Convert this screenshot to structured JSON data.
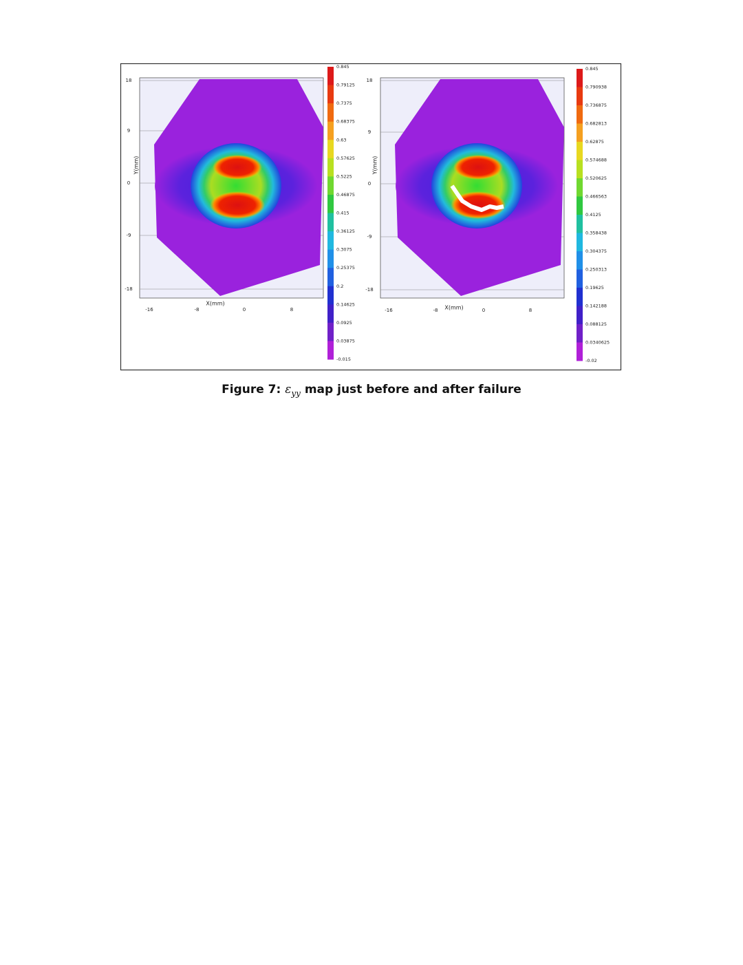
{
  "figure": {
    "panels": [
      {
        "y_axis_label": "Y(mm)",
        "x_axis_label": "X(mm)",
        "yticks": [
          "18",
          "9",
          "0",
          "-9",
          "-18"
        ],
        "xticks": [
          "-16",
          "-8",
          "0",
          "8"
        ],
        "colorbar": [
          "0.845",
          "0.79125",
          "0.7375",
          "0.68375",
          "0.63",
          "0.57625",
          "0.5225",
          "0.46875",
          "0.415",
          "0.36125",
          "0.3075",
          "0.25375",
          "0.2",
          "0.14625",
          "0.0925",
          "0.03875",
          "-0.015"
        ]
      },
      {
        "y_axis_label": "Y(mm)",
        "x_axis_label": "X(mm)",
        "yticks": [
          "18",
          "9",
          "0",
          "-9",
          "-18"
        ],
        "xticks": [
          "-16",
          "-8",
          "0",
          "8"
        ],
        "colorbar": [
          "0.845",
          "0.790938",
          "0.736875",
          "0.682813",
          "0.62875",
          "0.574688",
          "0.520625",
          "0.466563",
          "0.4125",
          "0.358438",
          "0.304375",
          "0.250313",
          "0.19625",
          "0.142188",
          "0.088125",
          "0.0340625",
          "-0.02"
        ]
      }
    ],
    "caption": {
      "label": "Figure 7:",
      "symbol": "ε",
      "subscript": "yy",
      "text": "map just before and after failure"
    }
  }
}
